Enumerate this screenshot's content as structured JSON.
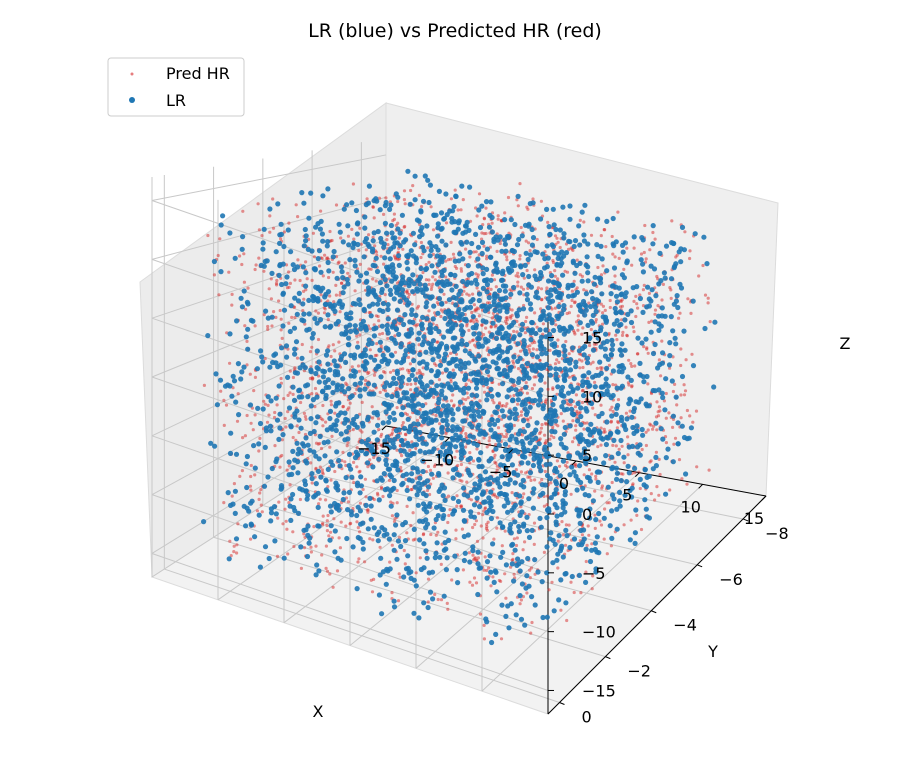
{
  "chart_data": {
    "type": "scatter",
    "projection": "3d",
    "title": "LR (blue) vs Predicted HR (red)",
    "xlabel": "X",
    "ylabel": "Y",
    "zlabel": "Z",
    "xlim": [
      -15,
      15
    ],
    "ylim": [
      -9,
      0.5
    ],
    "zlim": [
      -17,
      17
    ],
    "x_ticks": [
      "−15",
      "−10",
      "−5",
      "0",
      "5",
      "10",
      "15"
    ],
    "y_ticks": [
      "0",
      "−2",
      "−4",
      "−6",
      "−8"
    ],
    "z_ticks": [
      "15",
      "10",
      "5",
      "0",
      "−5",
      "−10",
      "−15"
    ],
    "grid": true,
    "legend_position": "top-left",
    "legend": [
      "Pred HR",
      "LR"
    ],
    "series": [
      {
        "name": "Pred HR",
        "color": "#d62728",
        "marker_size": "small",
        "alpha": 0.5,
        "x_range": [
          -12,
          12
        ],
        "y_range": [
          -8.5,
          0
        ],
        "z_range": [
          -15,
          15
        ]
      },
      {
        "name": "LR",
        "color": "#1f77b4",
        "marker_size": "medium",
        "alpha": 0.9,
        "x_range": [
          -12,
          12
        ],
        "y_range": [
          -8.5,
          0
        ],
        "z_range": [
          -15,
          15
        ]
      }
    ]
  }
}
